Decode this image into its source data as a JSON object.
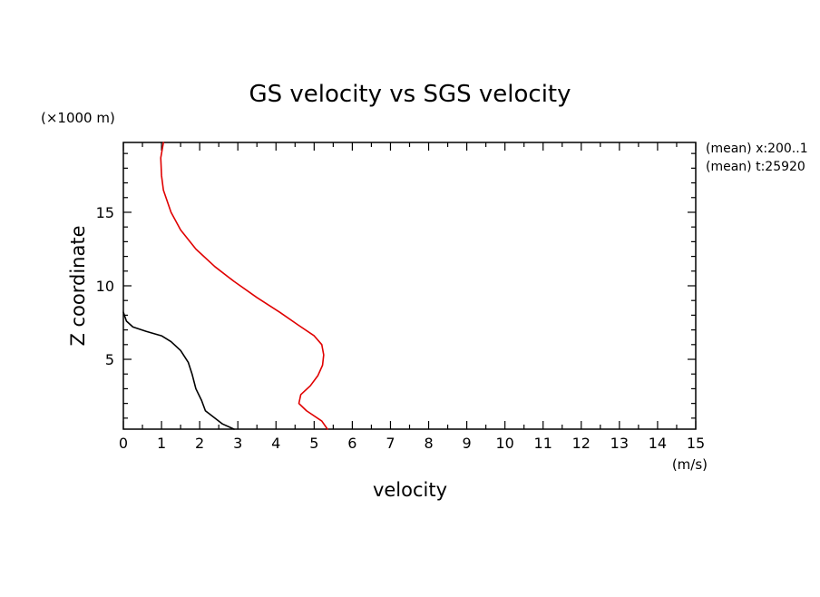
{
  "chart_data": {
    "type": "line",
    "title": "GS velocity vs SGS velocity",
    "xlabel": "velocity",
    "ylabel": "Z coordinate",
    "x_unit": "(m/s)",
    "y_unit": "(×1000 m)",
    "xlim": [
      0,
      15
    ],
    "ylim": [
      0.25,
      19.75
    ],
    "x_ticks": [
      0,
      1,
      2,
      3,
      4,
      5,
      6,
      7,
      8,
      9,
      10,
      11,
      12,
      13,
      14,
      15
    ],
    "y_ticks": [
      5,
      10,
      15
    ],
    "grid": false,
    "annotations": [
      "(mean) x:200..1",
      "(mean) t:25920"
    ],
    "series": [
      {
        "color": "#000000",
        "points": [
          [
            2.9,
            0.25
          ],
          [
            2.6,
            0.6
          ],
          [
            2.4,
            1.0
          ],
          [
            2.15,
            1.5
          ],
          [
            2.05,
            2.2
          ],
          [
            1.9,
            3.0
          ],
          [
            1.8,
            4.0
          ],
          [
            1.7,
            4.8
          ],
          [
            1.5,
            5.6
          ],
          [
            1.25,
            6.2
          ],
          [
            1.0,
            6.6
          ],
          [
            0.6,
            6.9
          ],
          [
            0.25,
            7.2
          ],
          [
            0.08,
            7.6
          ],
          [
            0.0,
            8.2
          ]
        ]
      },
      {
        "color": "#e00000",
        "points": [
          [
            5.35,
            0.25
          ],
          [
            5.2,
            0.8
          ],
          [
            4.8,
            1.5
          ],
          [
            4.6,
            2.0
          ],
          [
            4.65,
            2.6
          ],
          [
            4.9,
            3.2
          ],
          [
            5.1,
            3.9
          ],
          [
            5.22,
            4.6
          ],
          [
            5.25,
            5.3
          ],
          [
            5.2,
            6.0
          ],
          [
            5.0,
            6.6
          ],
          [
            4.6,
            7.3
          ],
          [
            4.1,
            8.2
          ],
          [
            3.5,
            9.2
          ],
          [
            2.9,
            10.3
          ],
          [
            2.4,
            11.3
          ],
          [
            1.9,
            12.5
          ],
          [
            1.5,
            13.8
          ],
          [
            1.25,
            15.0
          ],
          [
            1.05,
            16.5
          ],
          [
            1.0,
            17.5
          ],
          [
            0.98,
            18.7
          ],
          [
            1.05,
            19.75
          ]
        ]
      }
    ]
  }
}
